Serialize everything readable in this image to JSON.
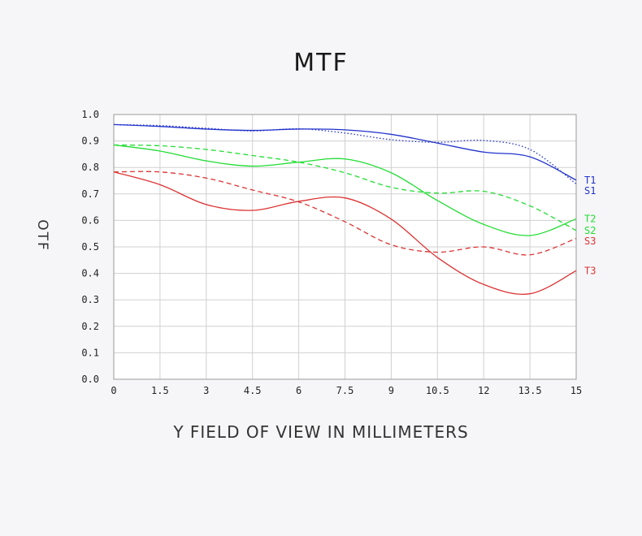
{
  "chart_data": {
    "type": "line",
    "title": "MTF",
    "xlabel": "Y FIELD OF VIEW IN MILLIMETERS",
    "ylabel": "OTF",
    "xlim": [
      0,
      15
    ],
    "ylim": [
      0,
      1
    ],
    "grid": true,
    "xticks": [
      0,
      1.5,
      3,
      4.5,
      6,
      7.5,
      9,
      10.5,
      12,
      13.5,
      15
    ],
    "xtick_labels": [
      "0",
      "1.5",
      "3",
      "4.5",
      "6",
      "7.5",
      "9",
      "10.5",
      "12",
      "13.5",
      "15"
    ],
    "yticks": [
      0,
      0.1,
      0.2,
      0.3,
      0.4,
      0.5,
      0.6,
      0.7,
      0.8,
      0.9,
      1.0
    ],
    "ytick_labels": [
      "0.0",
      "0.1",
      "0.2",
      "0.3",
      "0.4",
      "0.5",
      "0.6",
      "0.7",
      "0.8",
      "0.9",
      "1.0"
    ],
    "x": [
      0,
      1.5,
      3,
      4.5,
      6,
      7.5,
      9,
      10.5,
      12,
      13.5,
      15
    ],
    "series": [
      {
        "name": "T1",
        "color": "#2233cc",
        "dash": "solid",
        "values": [
          0.962,
          0.955,
          0.945,
          0.94,
          0.945,
          0.942,
          0.925,
          0.892,
          0.858,
          0.84,
          0.752
        ]
      },
      {
        "name": "S1",
        "color": "#2233cc",
        "dash": "dotted",
        "values": [
          0.962,
          0.958,
          0.948,
          0.938,
          0.946,
          0.93,
          0.905,
          0.895,
          0.902,
          0.868,
          0.738
        ]
      },
      {
        "name": "T2",
        "color": "#22dd33",
        "dash": "solid",
        "values": [
          0.885,
          0.862,
          0.825,
          0.805,
          0.82,
          0.832,
          0.78,
          0.675,
          0.585,
          0.543,
          0.606
        ]
      },
      {
        "name": "S2",
        "color": "#22dd33",
        "dash": "dashed",
        "values": [
          0.885,
          0.882,
          0.868,
          0.845,
          0.82,
          0.78,
          0.725,
          0.703,
          0.71,
          0.655,
          0.562
        ]
      },
      {
        "name": "S3",
        "color": "#dd3333",
        "dash": "dashed",
        "values": [
          0.783,
          0.783,
          0.76,
          0.715,
          0.67,
          0.595,
          0.508,
          0.48,
          0.5,
          0.47,
          0.532
        ]
      },
      {
        "name": "T3",
        "color": "#dd3333",
        "dash": "solid",
        "values": [
          0.783,
          0.735,
          0.66,
          0.638,
          0.672,
          0.685,
          0.605,
          0.46,
          0.358,
          0.323,
          0.41
        ]
      }
    ]
  }
}
